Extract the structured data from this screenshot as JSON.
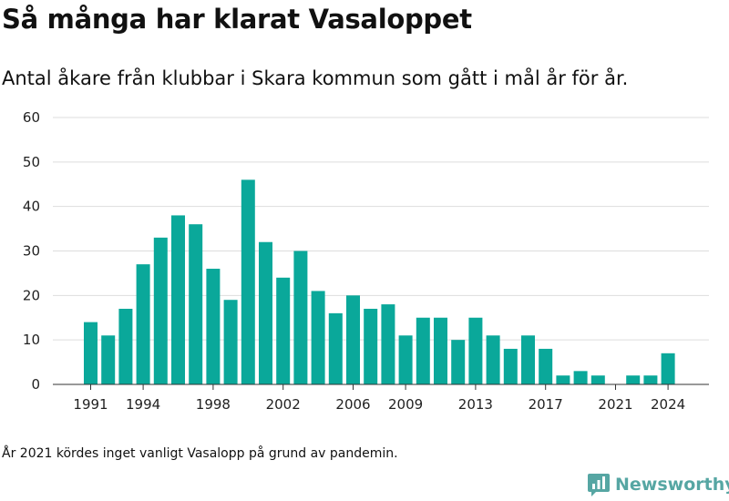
{
  "title": "Så många har klarat Vasaloppet",
  "subtitle": "Antal åkare från klubbar i Skara kommun som gått i mål år för år.",
  "footnote": "År 2021 kördes inget vanligt Vasalopp på grund av pandemin.",
  "logo_text": "Newsworthy",
  "colors": {
    "bar": "#0aa89a",
    "grid": "#dddddd",
    "axis": "#333333",
    "text": "#222222",
    "logo": "#56a6a3"
  },
  "chart_data": {
    "type": "bar",
    "title": "",
    "xlabel": "",
    "ylabel": "",
    "x": [
      1991,
      1992,
      1993,
      1994,
      1995,
      1996,
      1997,
      1998,
      1999,
      2000,
      2001,
      2002,
      2003,
      2004,
      2005,
      2006,
      2007,
      2008,
      2009,
      2010,
      2011,
      2012,
      2013,
      2014,
      2015,
      2016,
      2017,
      2018,
      2019,
      2020,
      2021,
      2022,
      2023,
      2024
    ],
    "values": [
      14,
      11,
      17,
      27,
      33,
      38,
      36,
      26,
      19,
      46,
      32,
      24,
      30,
      21,
      16,
      20,
      17,
      18,
      11,
      15,
      15,
      10,
      15,
      11,
      8,
      11,
      8,
      2,
      3,
      2,
      0,
      2,
      2,
      7
    ],
    "xticks": [
      "1991",
      "1994",
      "1998",
      "2002",
      "2006",
      "2009",
      "2013",
      "2017",
      "2021",
      "2024"
    ],
    "yticks": [
      "0",
      "10",
      "20",
      "30",
      "40",
      "50",
      "60"
    ],
    "ylim": [
      0,
      60
    ],
    "grid": true
  }
}
